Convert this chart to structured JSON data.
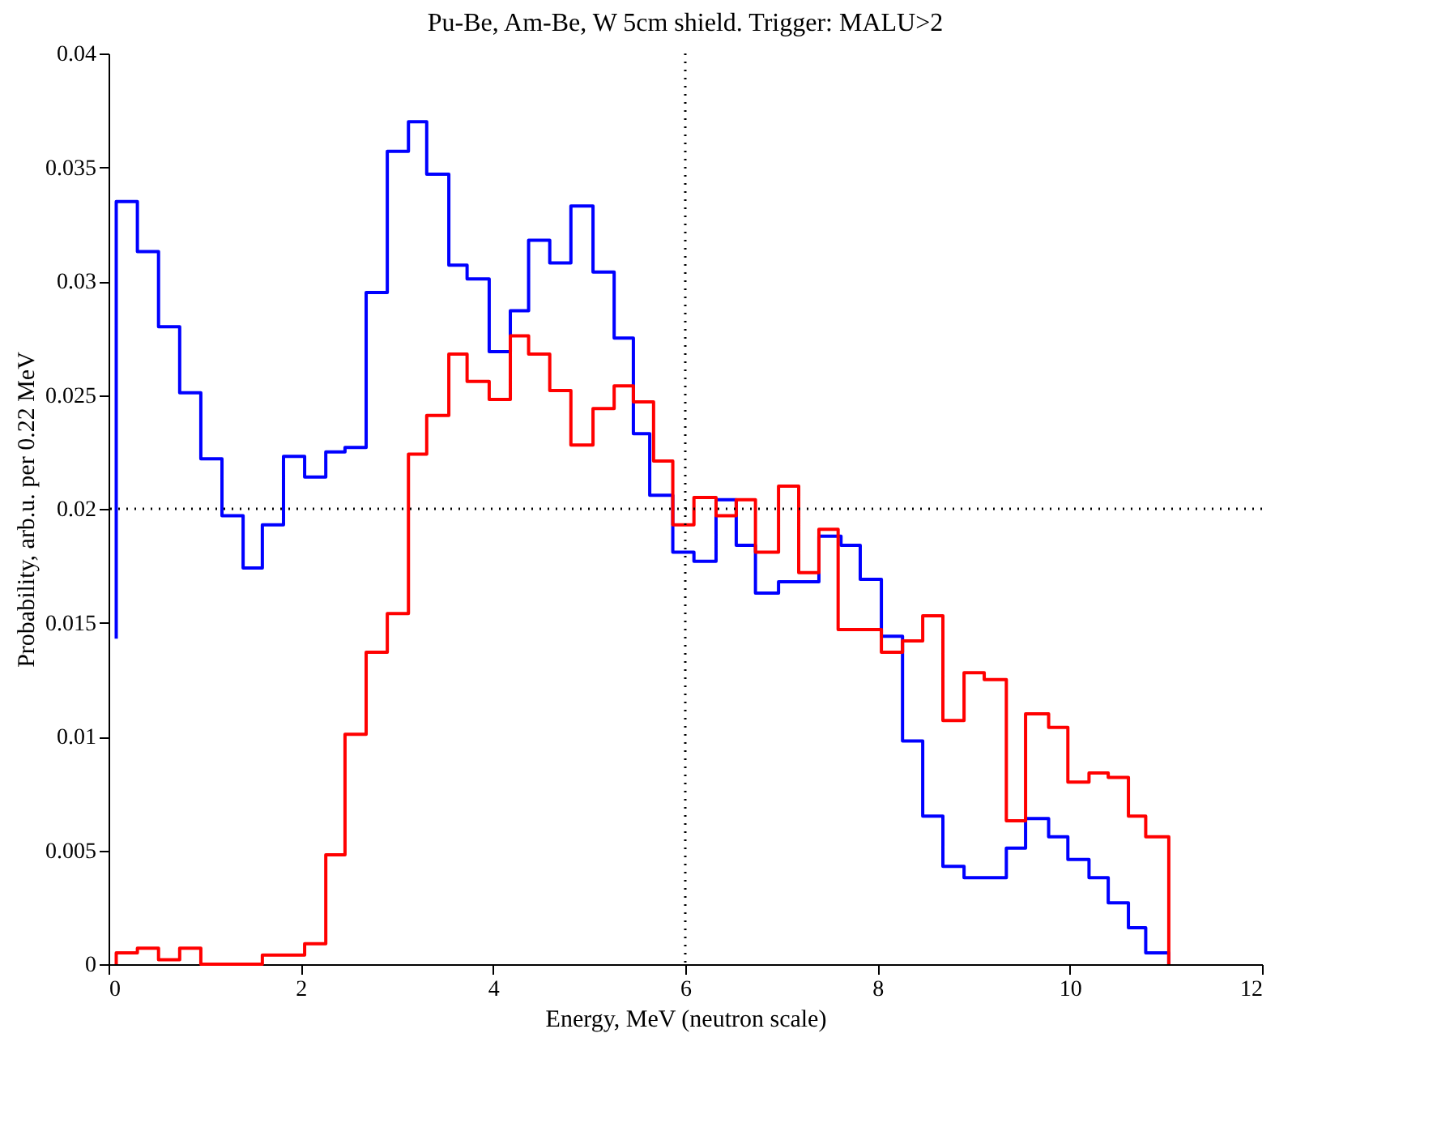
{
  "chart_data": {
    "type": "step",
    "title": "Pu-Be, Am-Be, W 5cm shield. Trigger: MALU>2",
    "xlabel": "Energy, MeV (neutron scale)",
    "ylabel": "Probability, arb.u. per 0.22 MeV",
    "xlim": [
      0,
      12
    ],
    "xticks": [
      0,
      2,
      4,
      6,
      8,
      10,
      12
    ],
    "ylim": [
      0,
      0.04
    ],
    "yticks": [
      0,
      0.005,
      0.01,
      0.015,
      0.02,
      0.025,
      0.03,
      0.035,
      0.04
    ],
    "series": [
      {
        "color": "#0000ff",
        "x": [
          0.08,
          0.08,
          0.3,
          0.52,
          0.74,
          0.96,
          1.18,
          1.4,
          1.6,
          1.82,
          2.04,
          2.26,
          2.46,
          2.68,
          2.9,
          3.12,
          3.31,
          3.54,
          3.73,
          3.96,
          4.18,
          4.37,
          4.59,
          4.81,
          5.04,
          5.26,
          5.46,
          5.63,
          5.87,
          6.09,
          6.32,
          6.53,
          6.73,
          6.97,
          7.39,
          7.62,
          7.82,
          8.04,
          8.26,
          8.47,
          8.68,
          8.9,
          9.34,
          9.54,
          9.78,
          9.98,
          10.2,
          10.4,
          10.61,
          10.79,
          11.03
        ],
        "values": [
          0.0143,
          0.0335,
          0.0313,
          0.028,
          0.0251,
          0.0222,
          0.0197,
          0.0174,
          0.0193,
          0.0223,
          0.0214,
          0.0225,
          0.0227,
          0.0295,
          0.0357,
          0.037,
          0.0347,
          0.0307,
          0.0301,
          0.0269,
          0.0287,
          0.0318,
          0.0308,
          0.0333,
          0.0304,
          0.0275,
          0.0233,
          0.0206,
          0.0181,
          0.0177,
          0.0204,
          0.0184,
          0.0163,
          0.0168,
          0.0188,
          0.0184,
          0.0169,
          0.0144,
          0.0098,
          0.0065,
          0.0043,
          0.0038,
          0.0051,
          0.0064,
          0.0056,
          0.0046,
          0.0038,
          0.0027,
          0.0016,
          0.0005,
          0
        ]
      },
      {
        "color": "#ff0000",
        "x": [
          0.08,
          0.08,
          0.3,
          0.52,
          0.74,
          0.96,
          1.6,
          2.04,
          2.26,
          2.46,
          2.68,
          2.9,
          3.12,
          3.31,
          3.54,
          3.73,
          3.96,
          4.18,
          4.37,
          4.59,
          4.81,
          5.04,
          5.26,
          5.46,
          5.67,
          5.87,
          6.09,
          6.32,
          6.53,
          6.73,
          6.97,
          7.18,
          7.39,
          7.59,
          8.04,
          8.26,
          8.47,
          8.68,
          8.9,
          9.11,
          9.34,
          9.54,
          9.78,
          9.98,
          10.2,
          10.4,
          10.61,
          10.79,
          11.03
        ],
        "values": [
          0,
          0.0005,
          0.0007,
          0.0002,
          0.0007,
          0,
          0.0004,
          0.0009,
          0.0048,
          0.0101,
          0.0137,
          0.0154,
          0.0224,
          0.0241,
          0.0268,
          0.0256,
          0.0248,
          0.0276,
          0.0268,
          0.0252,
          0.0228,
          0.0244,
          0.0254,
          0.0247,
          0.0221,
          0.0193,
          0.0205,
          0.0197,
          0.0204,
          0.0181,
          0.021,
          0.0172,
          0.0191,
          0.0147,
          0.0137,
          0.0142,
          0.0153,
          0.0107,
          0.0128,
          0.0125,
          0.0063,
          0.011,
          0.0104,
          0.008,
          0.0084,
          0.0082,
          0.0065,
          0.0056,
          0
        ]
      }
    ],
    "ref_lines": [
      {
        "axis": "x",
        "value": 6,
        "line_style": "dotted",
        "color": "#000000"
      },
      {
        "axis": "y",
        "value": 0.02,
        "line_style": "dotted",
        "color": "#000000"
      }
    ]
  }
}
